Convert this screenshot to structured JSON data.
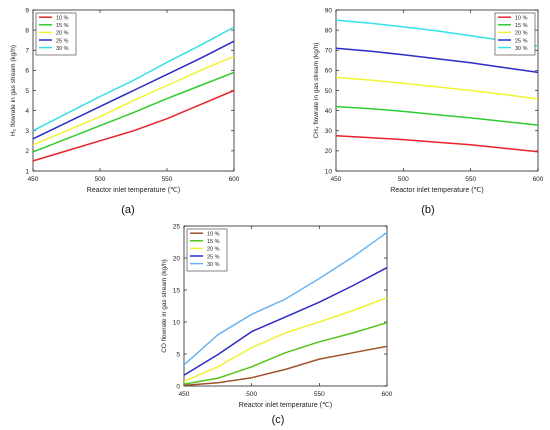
{
  "figure": {
    "panel_labels": [
      "(a)",
      "(b)",
      "(c)"
    ]
  },
  "chart_data": [
    {
      "type": "line",
      "panel": "(a)",
      "xlabel": "Reactor inlet temperature (℃)",
      "ylabel": "H₂ flowrate in gas stream (kg/h)",
      "xlim": [
        450,
        600
      ],
      "ylim": [
        1,
        9
      ],
      "xticks": [
        450,
        500,
        550,
        600
      ],
      "yticks": [
        1,
        2,
        3,
        4,
        5,
        6,
        7,
        8,
        9
      ],
      "grid": false,
      "legend_position": "top-left",
      "x": [
        450,
        475,
        500,
        525,
        550,
        575,
        600
      ],
      "series": [
        {
          "name": "10 %",
          "color": "#e8232a",
          "values": [
            1.5,
            2.0,
            2.5,
            3.0,
            3.6,
            4.3,
            5.0
          ]
        },
        {
          "name": "15 %",
          "color": "#2ecc2e",
          "values": [
            1.95,
            2.6,
            3.25,
            3.9,
            4.6,
            5.25,
            5.9
          ]
        },
        {
          "name": "20 %",
          "color": "#f2f233",
          "values": [
            2.3,
            3.0,
            3.7,
            4.5,
            5.25,
            6.0,
            6.7
          ]
        },
        {
          "name": "25 %",
          "color": "#2b2bc8",
          "values": [
            2.6,
            3.4,
            4.2,
            5.0,
            5.8,
            6.6,
            7.45
          ]
        },
        {
          "name": "30 %",
          "color": "#33e0e6",
          "values": [
            3.0,
            3.85,
            4.7,
            5.5,
            6.4,
            7.25,
            8.15
          ]
        }
      ]
    },
    {
      "type": "line",
      "panel": "(b)",
      "xlabel": "Reactor inlet temperature (℃)",
      "ylabel": "CH₄ flowrate in gas stream (kg/h)",
      "xlim": [
        450,
        600
      ],
      "ylim": [
        10,
        90
      ],
      "xticks": [
        450,
        500,
        550,
        600
      ],
      "yticks": [
        10,
        20,
        30,
        40,
        50,
        60,
        70,
        80,
        90
      ],
      "grid": false,
      "legend_position": "top-right",
      "x": [
        450,
        475,
        500,
        525,
        550,
        575,
        600
      ],
      "series": [
        {
          "name": "10 %",
          "color": "#e8232a",
          "values": [
            27.5,
            26.6,
            25.6,
            24.3,
            23.0,
            21.3,
            19.6
          ]
        },
        {
          "name": "15 %",
          "color": "#2ecc2e",
          "values": [
            42.0,
            41.0,
            39.6,
            38.0,
            36.4,
            34.6,
            32.8
          ]
        },
        {
          "name": "20 %",
          "color": "#f2f233",
          "values": [
            56.5,
            55.2,
            53.6,
            51.8,
            50.0,
            48.0,
            45.8
          ]
        },
        {
          "name": "25 %",
          "color": "#2b2bc8",
          "values": [
            71.0,
            69.6,
            67.8,
            65.8,
            63.8,
            61.4,
            59.0
          ]
        },
        {
          "name": "30 %",
          "color": "#33e0e6",
          "values": [
            85.0,
            83.5,
            81.6,
            79.6,
            77.2,
            74.8,
            72.0
          ]
        }
      ]
    },
    {
      "type": "line",
      "panel": "(c)",
      "xlabel": "Reactor inlet temperature (℃)",
      "ylabel": "CO flowrate in gas stream (kg/h)",
      "xlim": [
        450,
        600
      ],
      "ylim": [
        0,
        25
      ],
      "xticks": [
        450,
        500,
        550,
        600
      ],
      "yticks": [
        0,
        5,
        10,
        15,
        20,
        25
      ],
      "grid": false,
      "legend_position": "top-left",
      "x": [
        450,
        475,
        500,
        525,
        550,
        575,
        600
      ],
      "series": [
        {
          "name": "10 %",
          "color": "#a0522d",
          "values": [
            0.1,
            0.5,
            1.3,
            2.6,
            4.2,
            5.2,
            6.2
          ]
        },
        {
          "name": "15 %",
          "color": "#52c41a",
          "values": [
            0.3,
            1.2,
            3.0,
            5.2,
            6.9,
            8.3,
            9.9
          ]
        },
        {
          "name": "20 %",
          "color": "#f2f233",
          "values": [
            0.7,
            3.0,
            6.0,
            8.3,
            10.0,
            11.8,
            13.8
          ]
        },
        {
          "name": "25 %",
          "color": "#2b2bc8",
          "values": [
            1.7,
            4.9,
            8.5,
            10.8,
            13.1,
            15.7,
            18.5
          ]
        },
        {
          "name": "30 %",
          "color": "#6ab4f0",
          "values": [
            3.3,
            8.0,
            11.2,
            13.6,
            16.8,
            20.2,
            24.0
          ]
        }
      ]
    }
  ]
}
